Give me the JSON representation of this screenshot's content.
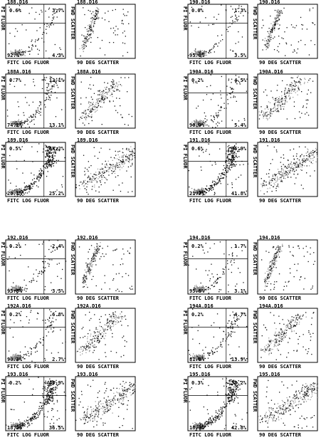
{
  "chart_data": [
    {
      "type": "scatter",
      "title": "188.D16",
      "ylabel": "PI FLUOR",
      "xlabel": "FITC LOG FLUOR",
      "annotations": [
        "0.6%",
        "3.7%",
        "92.%",
        "4.3%"
      ]
    },
    {
      "type": "scatter",
      "title": "188.D16",
      "ylabel": "FWD SCATTER",
      "xlabel": "90 DEG SCATTER"
    },
    {
      "type": "scatter",
      "title": "188A.D16",
      "ylabel": "PI FLUOR",
      "xlabel": "FITC LOG FLUOR",
      "annotations": [
        "0.7%",
        "12.1%",
        "74.2%",
        "13.1%"
      ]
    },
    {
      "type": "scatter",
      "title": "188A.D16",
      "ylabel": "FWD SCATTER",
      "xlabel": "90 DEG SCATTER"
    },
    {
      "type": "scatter",
      "title": "189.D16",
      "ylabel": "PI FLUOR",
      "xlabel": "FITC LOG FLUOR",
      "annotations": [
        "0.5%",
        "54.2%",
        "20.1%",
        "25.2%"
      ]
    },
    {
      "type": "scatter",
      "title": "189.D16",
      "ylabel": "FWD SCATTER",
      "xlabel": "90 DEG SCATTER"
    },
    {
      "type": "scatter",
      "title": "190.D16",
      "ylabel": "PI FLUOR",
      "xlabel": "FITC LOG FLUOR",
      "annotations": [
        "0.0%",
        "1.3%",
        "95.0%",
        "3.5%"
      ]
    },
    {
      "type": "scatter",
      "title": "190.D16",
      "ylabel": "FWD SCATTER",
      "xlabel": "90 DEG SCATTER"
    },
    {
      "type": "scatter",
      "title": "190A.D16",
      "ylabel": "PI FLUOR",
      "xlabel": "FITC LOG FLUOR",
      "annotations": [
        "0.2%",
        "4.5%",
        "90.0%",
        "5.4%"
      ]
    },
    {
      "type": "scatter",
      "title": "190A.D16",
      "ylabel": "FWD SCATTER",
      "xlabel": "90 DEG SCATTER"
    },
    {
      "type": "scatter",
      "title": "191.D16",
      "ylabel": "PI FLUOR",
      "xlabel": "FITC LOG FLUOR",
      "annotations": [
        "0.6%",
        "35.9%",
        "21.7%",
        "41.8%"
      ]
    },
    {
      "type": "scatter",
      "title": "191.D16",
      "ylabel": "FWD SCATTER",
      "xlabel": "90 DEG SCATTER"
    },
    {
      "type": "scatter",
      "title": "192.D16",
      "ylabel": "PI FLUOR",
      "xlabel": "FITC LOG FLUOR",
      "annotations": [
        "0.2%",
        "2.4%",
        "93.8%",
        "3.5%"
      ]
    },
    {
      "type": "scatter",
      "title": "192.D16",
      "ylabel": "FWD SCATTER",
      "xlabel": "90 DEG SCATTER"
    },
    {
      "type": "scatter",
      "title": "192A.D16",
      "ylabel": "PI FLUOR",
      "xlabel": "FITC LOG FLUOR",
      "annotations": [
        "0.2%",
        "6.8%",
        "90.3%",
        "2.7%"
      ]
    },
    {
      "type": "scatter",
      "title": "192A.D16",
      "ylabel": "FWD SCATTER",
      "xlabel": "90 DEG SCATTER"
    },
    {
      "type": "scatter",
      "title": "193.D16",
      "ylabel": "PI FLUOR",
      "xlabel": "FITC LOG FLUOR",
      "annotations": [
        "0.2%",
        "45.9%",
        "18.3%",
        "36.5%"
      ]
    },
    {
      "type": "scatter",
      "title": "193.D16",
      "ylabel": "FWD SCATTER",
      "xlabel": "90 DEG SCATTER"
    },
    {
      "type": "scatter",
      "title": "194.D16",
      "ylabel": "PI FLUOR",
      "xlabel": "FITC LOG FLUOR",
      "annotations": [
        "0.2%",
        "1.7%",
        "95.0%",
        "3.1%"
      ]
    },
    {
      "type": "scatter",
      "title": "194.D16",
      "ylabel": "FWD SCATTER",
      "xlabel": "90 DEG SCATTER"
    },
    {
      "type": "scatter",
      "title": "194A.D16",
      "ylabel": "PI FLUOR",
      "xlabel": "FITC LOG FLUOR",
      "annotations": [
        "0.2%",
        "4.7%",
        "81.3%",
        "13.9%"
      ]
    },
    {
      "type": "scatter",
      "title": "194A.D16",
      "ylabel": "FWD SCATTER",
      "xlabel": "90 DEG SCATTER"
    },
    {
      "type": "scatter",
      "title": "195.D16",
      "ylabel": "PI FLUOR",
      "xlabel": "FITC LOG FLUOR",
      "annotations": [
        "0.3%",
        "38.2%",
        "18.7%",
        "42.8%"
      ]
    },
    {
      "type": "scatter",
      "title": "195.D16",
      "ylabel": "FWD SCATTER",
      "xlabel": "90 DEG SCATTER"
    }
  ]
}
